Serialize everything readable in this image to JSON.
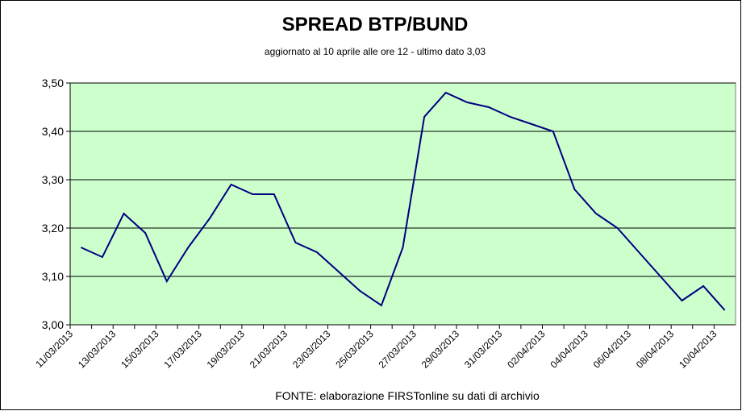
{
  "chart_data": {
    "type": "line",
    "title": "SPREAD  BTP/BUND",
    "subtitle": "aggiornato al 10 aprile alle ore 12 - ultimo dato 3,03",
    "source": "FONTE: elaborazione FIRSTonline su dati di archivio",
    "categories": [
      "11/03/2013",
      null,
      "13/03/2013",
      null,
      "15/03/2013",
      null,
      "17/03/2013",
      null,
      "19/03/2013",
      null,
      "21/03/2013",
      null,
      "23/03/2013",
      null,
      "25/03/2013",
      null,
      "27/03/2013",
      null,
      "29/03/2013",
      null,
      "31/03/2013",
      null,
      "02/04/2013",
      null,
      "04/04/2013",
      null,
      "06/04/2013",
      null,
      "08/04/2013",
      null,
      "10/04/2013"
    ],
    "values": [
      3.16,
      3.14,
      3.23,
      3.19,
      3.09,
      3.16,
      3.22,
      3.29,
      3.27,
      3.27,
      3.17,
      3.15,
      3.11,
      3.07,
      3.04,
      3.16,
      3.43,
      3.48,
      3.46,
      3.45,
      3.43,
      3.415,
      3.4,
      3.28,
      3.23,
      3.2,
      3.15,
      3.1,
      3.05,
      3.08,
      3.03
    ],
    "color": "#000080",
    "plot_background": "#ccffcc",
    "ylim": [
      3.0,
      3.5
    ],
    "yticks": [
      {
        "value": 3.0,
        "label": "3,00"
      },
      {
        "value": 3.1,
        "label": "3,10"
      },
      {
        "value": 3.2,
        "label": "3,20"
      },
      {
        "value": 3.3,
        "label": "3,30"
      },
      {
        "value": 3.4,
        "label": "3,40"
      },
      {
        "value": 3.5,
        "label": "3,50"
      }
    ],
    "grid": true
  }
}
